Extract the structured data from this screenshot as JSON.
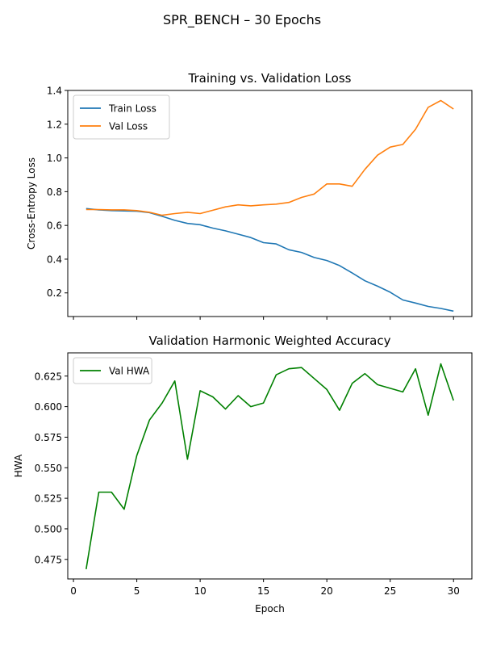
{
  "figure": {
    "suptitle": "SPR_BENCH – 30 Epochs"
  },
  "chart_data": [
    {
      "type": "line",
      "title": "Training vs. Validation Loss",
      "xlabel": "",
      "ylabel": "Cross-Entropy Loss",
      "xlim": [
        -0.45,
        31.45
      ],
      "ylim": [
        0.06,
        1.4
      ],
      "yticks": [
        0.2,
        0.4,
        0.6,
        0.8,
        1.0,
        1.2,
        1.4
      ],
      "ytick_labels": [
        "0.2",
        "0.4",
        "0.6",
        "0.8",
        "1.0",
        "1.2",
        "1.4"
      ],
      "xticks": [
        0,
        5,
        10,
        15,
        20,
        25,
        30
      ],
      "xtick_labels_shown": false,
      "grid": false,
      "legend": "upper-left",
      "x": [
        1,
        2,
        3,
        4,
        5,
        6,
        7,
        8,
        9,
        10,
        11,
        12,
        13,
        14,
        15,
        16,
        17,
        18,
        19,
        20,
        21,
        22,
        23,
        24,
        25,
        26,
        27,
        28,
        29,
        30
      ],
      "series": [
        {
          "name": "Train Loss",
          "color": "#1f77b4",
          "values": [
            0.7,
            0.692,
            0.688,
            0.686,
            0.684,
            0.676,
            0.654,
            0.63,
            0.612,
            0.604,
            0.584,
            0.568,
            0.548,
            0.528,
            0.498,
            0.49,
            0.456,
            0.44,
            0.41,
            0.392,
            0.362,
            0.318,
            0.272,
            0.24,
            0.204,
            0.158,
            0.14,
            0.12,
            0.108,
            0.092
          ]
        },
        {
          "name": "Val Loss",
          "color": "#ff7f0e",
          "values": [
            0.694,
            0.694,
            0.692,
            0.692,
            0.688,
            0.678,
            0.66,
            0.67,
            0.678,
            0.67,
            0.69,
            0.71,
            0.722,
            0.716,
            0.722,
            0.726,
            0.736,
            0.766,
            0.786,
            0.846,
            0.846,
            0.832,
            0.932,
            1.016,
            1.064,
            1.08,
            1.17,
            1.3,
            1.34,
            1.29
          ]
        }
      ]
    },
    {
      "type": "line",
      "title": "Validation Harmonic Weighted Accuracy",
      "xlabel": "Epoch",
      "ylabel": "HWA",
      "xlim": [
        -0.45,
        31.45
      ],
      "ylim": [
        0.459,
        0.644
      ],
      "yticks": [
        0.475,
        0.5,
        0.525,
        0.55,
        0.575,
        0.6,
        0.625
      ],
      "ytick_labels": [
        "0.475",
        "0.500",
        "0.525",
        "0.550",
        "0.575",
        "0.600",
        "0.625"
      ],
      "xticks": [
        0,
        5,
        10,
        15,
        20,
        25,
        30
      ],
      "xtick_labels": [
        "0",
        "5",
        "10",
        "15",
        "20",
        "25",
        "30"
      ],
      "grid": false,
      "legend": "upper-left",
      "x": [
        1,
        2,
        3,
        4,
        5,
        6,
        7,
        8,
        9,
        10,
        11,
        12,
        13,
        14,
        15,
        16,
        17,
        18,
        19,
        20,
        21,
        22,
        23,
        24,
        25,
        26,
        27,
        28,
        29,
        30
      ],
      "series": [
        {
          "name": "Val HWA",
          "color": "#008000",
          "values": [
            0.467,
            0.53,
            0.53,
            0.516,
            0.56,
            0.589,
            0.603,
            0.621,
            0.557,
            0.613,
            0.608,
            0.598,
            0.609,
            0.6,
            0.603,
            0.626,
            0.631,
            0.632,
            0.623,
            0.614,
            0.597,
            0.619,
            0.627,
            0.618,
            0.615,
            0.612,
            0.631,
            0.593,
            0.635,
            0.605
          ]
        }
      ]
    }
  ]
}
